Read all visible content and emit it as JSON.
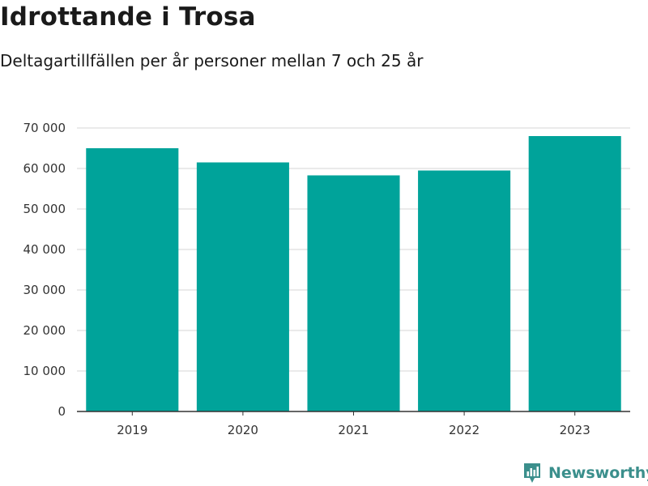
{
  "chart_data": {
    "type": "bar",
    "title": "Idrottande i Trosa",
    "subtitle": "Deltagartillfällen per år personer mellan 7 och 25 år",
    "xlabel": "",
    "ylabel": "",
    "categories": [
      "2019",
      "2020",
      "2021",
      "2022",
      "2023"
    ],
    "values": [
      65000,
      61500,
      58300,
      59500,
      68000
    ],
    "ylim": [
      0,
      70000
    ],
    "yticks": [
      0,
      10000,
      20000,
      30000,
      40000,
      50000,
      60000,
      70000
    ],
    "ytick_labels": [
      "0",
      "10 000",
      "20 000",
      "30 000",
      "40 000",
      "50 000",
      "60 000",
      "70 000"
    ],
    "grid": true,
    "bar_color": "#00a39a",
    "grid_color": "#dddddd",
    "axis_color": "#333333"
  },
  "brand": {
    "name": "Newsworthy",
    "icon": "newsworthy-logo-icon",
    "color": "#3b8f8c"
  }
}
